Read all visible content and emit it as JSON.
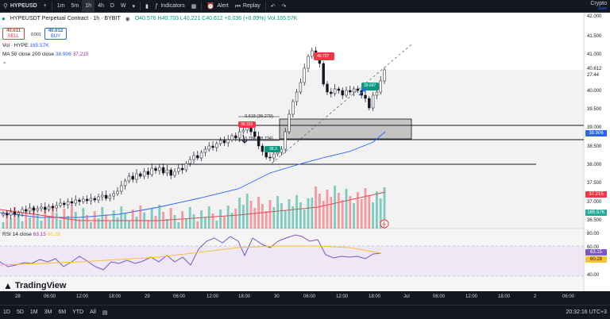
{
  "toolbar": {
    "symbol": "HYPEUSD",
    "intervals": [
      "1m",
      "5m",
      "1h",
      "4h",
      "D",
      "W"
    ],
    "active_interval": "1h",
    "indicators_label": "Indicators",
    "alert_label": "Alert",
    "replay_label": "Replay",
    "brand_line1": "Crypto",
    "brand_line2": "Save"
  },
  "legend": {
    "title": "HYPEUSDT Perpetual Contract · 1h · BYBIT",
    "ohlc": "O40.576 H40.703 L40.221 C40.612 +0.036 (+0.09%) Vol.165.57K"
  },
  "trade": {
    "sell_price": "40.611",
    "sell_label": "SELL",
    "spread": "0.001",
    "buy_price": "40.612",
    "buy_label": "BUY"
  },
  "indicators": {
    "vol_name": "Vol · HYPE",
    "vol_value": "165.57K",
    "ma_name": "MA 50 close 200 close",
    "ma_v1": "38.906",
    "ma_v2": "37.215",
    "rsi_name": "RSI 14 close",
    "rsi_v1": "63.15",
    "rsi_v2": "60.28"
  },
  "price_axis": [
    "42.000",
    "41.500",
    "41.000",
    "40.500",
    "40.000",
    "39.500",
    "39.000",
    "38.500",
    "38.000",
    "37.500",
    "37.000",
    "36.500"
  ],
  "rsi_axis": [
    "80.00",
    "60.00",
    "40.00"
  ],
  "time_axis": [
    "28",
    "06:00",
    "12:00",
    "18:00",
    "29",
    "06:00",
    "12:00",
    "18:00",
    "30",
    "06:00",
    "12:00",
    "18:00",
    "Jul",
    "06:00",
    "12:00",
    "18:00",
    "2",
    "06:00"
  ],
  "tags": {
    "last_price": "40.612",
    "countdown": "27:44",
    "ma50": "38.906",
    "ma200": "37.215",
    "volume": "165.57K",
    "rsi": "63.15",
    "rsi_ma": "60.28"
  },
  "annotations": {
    "fib_618": "0.618 (39.279)",
    "fib_786": "0.786 (38.734)",
    "red_label": "40.707",
    "green_label": "39.697",
    "small_green": "38.3",
    "small_red": "39.333"
  },
  "branding": "TradingView",
  "bottom": {
    "ranges": [
      "1D",
      "5D",
      "1M",
      "3M",
      "6M",
      "YTD",
      "All"
    ],
    "clock": "20:32:16 UTC+3"
  },
  "colors": {
    "up": "#ffffff",
    "down": "#131722",
    "ma50": "#2962ff",
    "ma200": "#f23645",
    "rsi": "#7e57c2",
    "rsi_ma": "#fbc02d",
    "volume": "#f7525f",
    "volume_up": "#22ab94"
  }
}
